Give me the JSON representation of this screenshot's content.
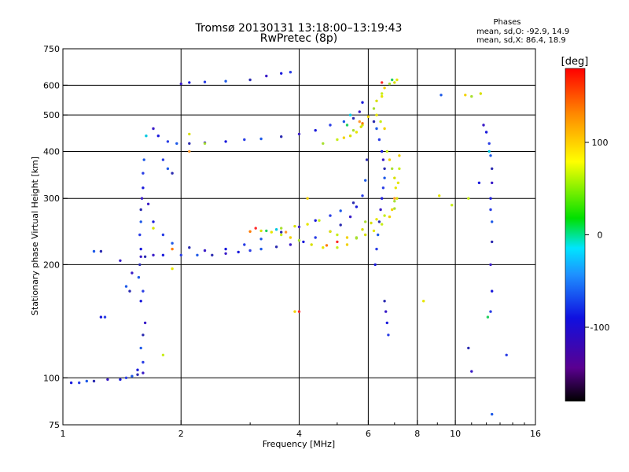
{
  "chart_data": {
    "type": "scatter",
    "title": "Tromsø 20130131 13:18:00–13:19:43",
    "subtitle": "RwPretec (8p)",
    "xlabel": "Frequency [MHz]",
    "ylabel": "Stationary phase Virtual Height [km]",
    "x_scale": "log",
    "y_scale": "log",
    "xlim": [
      1,
      16
    ],
    "ylim": [
      75,
      750
    ],
    "x_ticks": [
      1,
      2,
      4,
      6,
      8,
      10,
      16
    ],
    "x_tick_labels": [
      "1",
      "2",
      "4",
      "6",
      "8",
      "10",
      "16"
    ],
    "y_ticks": [
      75,
      100,
      200,
      300,
      400,
      500,
      600,
      750
    ],
    "y_tick_labels": [
      "75",
      "100",
      "200",
      "300",
      "400",
      "500",
      "600",
      "750"
    ],
    "grid": true,
    "stats": {
      "heading": "Phases",
      "line_o": "mean, sd,O: -92.9, 14.9",
      "line_x": "mean, sd,X:  86.4, 18.9"
    },
    "colorbar": {
      "label": "[deg]",
      "range": [
        -180,
        180
      ],
      "ticks": [
        -100,
        0,
        100
      ],
      "tick_labels": [
        "-100",
        "0",
        "100"
      ],
      "location": "right"
    },
    "series": [
      {
        "points": [
          [
            1.05,
            97
          ],
          [
            1.1,
            97
          ],
          [
            1.15,
            98
          ],
          [
            1.2,
            98
          ],
          [
            1.3,
            99
          ],
          [
            1.4,
            99
          ],
          [
            1.45,
            100
          ],
          [
            1.5,
            101
          ],
          [
            1.55,
            102
          ],
          [
            1.6,
            103
          ],
          [
            1.55,
            105
          ],
          [
            1.6,
            110
          ],
          [
            1.58,
            120
          ],
          [
            1.6,
            130
          ],
          [
            1.62,
            140
          ],
          [
            1.58,
            160
          ],
          [
            1.6,
            170
          ],
          [
            1.56,
            185
          ],
          [
            1.57,
            200
          ],
          [
            1.58,
            210
          ],
          [
            1.58,
            220
          ],
          [
            1.57,
            240
          ],
          [
            1.58,
            260
          ],
          [
            1.58,
            280
          ],
          [
            1.59,
            300
          ],
          [
            1.6,
            320
          ],
          [
            1.6,
            350
          ],
          [
            1.61,
            380
          ],
          [
            1.62,
            210
          ],
          [
            1.7,
            212
          ],
          [
            1.8,
            212
          ],
          [
            2.0,
            212
          ],
          [
            2.2,
            212
          ],
          [
            2.4,
            212
          ],
          [
            2.6,
            214
          ],
          [
            2.8,
            216
          ],
          [
            3.0,
            218
          ],
          [
            3.2,
            220
          ],
          [
            3.5,
            223
          ],
          [
            3.8,
            226
          ],
          [
            4.1,
            230
          ],
          [
            4.4,
            236
          ],
          [
            4.8,
            245
          ],
          [
            5.1,
            255
          ],
          [
            5.4,
            268
          ],
          [
            5.6,
            285
          ],
          [
            5.8,
            305
          ],
          [
            5.9,
            335
          ],
          [
            5.95,
            380
          ],
          [
            1.65,
            290
          ],
          [
            1.7,
            260
          ],
          [
            1.8,
            240
          ],
          [
            1.9,
            228
          ],
          [
            2.1,
            222
          ],
          [
            2.3,
            218
          ],
          [
            2.6,
            220
          ],
          [
            2.9,
            226
          ],
          [
            3.2,
            234
          ],
          [
            3.6,
            244
          ],
          [
            4.0,
            252
          ],
          [
            4.4,
            262
          ],
          [
            4.8,
            270
          ],
          [
            5.1,
            278
          ],
          [
            5.5,
            292
          ],
          [
            1.7,
            460
          ],
          [
            1.75,
            440
          ],
          [
            1.85,
            425
          ],
          [
            1.95,
            420
          ],
          [
            2.1,
            420
          ],
          [
            2.3,
            422
          ],
          [
            2.6,
            425
          ],
          [
            2.9,
            430
          ],
          [
            3.2,
            432
          ],
          [
            3.6,
            438
          ],
          [
            4.0,
            445
          ],
          [
            4.4,
            455
          ],
          [
            4.8,
            470
          ],
          [
            5.2,
            480
          ],
          [
            5.5,
            490
          ],
          [
            5.7,
            510
          ],
          [
            5.8,
            540
          ],
          [
            1.8,
            380
          ],
          [
            1.85,
            360
          ],
          [
            1.9,
            350
          ],
          [
            2.0,
            605
          ],
          [
            2.1,
            610
          ],
          [
            2.3,
            612
          ],
          [
            2.6,
            615
          ],
          [
            3.0,
            620
          ],
          [
            3.3,
            635
          ],
          [
            3.6,
            645
          ],
          [
            3.8,
            650
          ],
          [
            1.2,
            217
          ],
          [
            1.25,
            217
          ],
          [
            1.4,
            205
          ],
          [
            1.25,
            145
          ],
          [
            1.28,
            145
          ],
          [
            1.45,
            175
          ],
          [
            1.48,
            170
          ],
          [
            1.5,
            190
          ],
          [
            6.25,
            200
          ],
          [
            6.3,
            220
          ],
          [
            6.35,
            240
          ],
          [
            6.4,
            260
          ],
          [
            6.45,
            280
          ],
          [
            6.5,
            300
          ],
          [
            6.55,
            320
          ],
          [
            6.6,
            340
          ],
          [
            6.6,
            360
          ],
          [
            6.55,
            380
          ],
          [
            6.5,
            400
          ],
          [
            6.4,
            430
          ],
          [
            6.3,
            460
          ],
          [
            6.2,
            480
          ],
          [
            11.8,
            470
          ],
          [
            12.0,
            450
          ],
          [
            12.2,
            420
          ],
          [
            12.3,
            390
          ],
          [
            12.4,
            360
          ],
          [
            12.4,
            330
          ],
          [
            12.3,
            300
          ],
          [
            12.3,
            280
          ],
          [
            12.4,
            260
          ],
          [
            12.4,
            230
          ],
          [
            12.3,
            200
          ],
          [
            12.4,
            170
          ],
          [
            12.3,
            150
          ],
          [
            12.4,
            80
          ],
          [
            10.8,
            120
          ],
          [
            11.0,
            104
          ],
          [
            11.5,
            330
          ],
          [
            13.5,
            115
          ],
          [
            9.2,
            565
          ],
          [
            6.6,
            160
          ],
          [
            6.65,
            150
          ],
          [
            6.7,
            140
          ],
          [
            6.75,
            130
          ]
        ]
      },
      {
        "points": [
          [
            3.2,
            246
          ],
          [
            3.4,
            244
          ],
          [
            3.6,
            240
          ],
          [
            3.8,
            236
          ],
          [
            4.0,
            232
          ],
          [
            4.3,
            226
          ],
          [
            4.6,
            222
          ],
          [
            5.0,
            222
          ],
          [
            5.3,
            226
          ],
          [
            5.6,
            235
          ],
          [
            5.8,
            248
          ],
          [
            4.8,
            245
          ],
          [
            5.0,
            240
          ],
          [
            5.3,
            236
          ],
          [
            5.6,
            236
          ],
          [
            5.9,
            240
          ],
          [
            6.2,
            246
          ],
          [
            6.5,
            256
          ],
          [
            6.8,
            268
          ],
          [
            7.0,
            282
          ],
          [
            7.1,
            300
          ],
          [
            7.15,
            330
          ],
          [
            7.2,
            360
          ],
          [
            7.2,
            390
          ],
          [
            5.9,
            260
          ],
          [
            6.1,
            258
          ],
          [
            6.3,
            264
          ],
          [
            6.6,
            270
          ],
          [
            6.9,
            280
          ],
          [
            7.0,
            295
          ],
          [
            5.4,
            440
          ],
          [
            5.6,
            450
          ],
          [
            5.8,
            470
          ],
          [
            6.0,
            495
          ],
          [
            6.2,
            520
          ],
          [
            6.3,
            545
          ],
          [
            6.5,
            560
          ],
          [
            6.5,
            570
          ],
          [
            6.6,
            590
          ],
          [
            6.8,
            605
          ],
          [
            7.0,
            610
          ],
          [
            7.1,
            620
          ],
          [
            6.7,
            400
          ],
          [
            6.8,
            380
          ],
          [
            6.9,
            360
          ],
          [
            7.0,
            340
          ],
          [
            7.05,
            320
          ],
          [
            5.0,
            430
          ],
          [
            5.2,
            435
          ],
          [
            5.5,
            455
          ],
          [
            5.75,
            465
          ],
          [
            6.3,
            500
          ],
          [
            6.45,
            480
          ],
          [
            6.6,
            460
          ],
          [
            3.6,
            250
          ],
          [
            3.9,
            253
          ],
          [
            4.2,
            256
          ],
          [
            4.5,
            262
          ],
          [
            4.2,
            300
          ],
          [
            2.3,
            420
          ],
          [
            2.1,
            445
          ],
          [
            1.9,
            195
          ],
          [
            1.8,
            115
          ],
          [
            3.9,
            150
          ],
          [
            4.6,
            420
          ],
          [
            1.7,
            250
          ],
          [
            9.1,
            305
          ],
          [
            9.8,
            288
          ],
          [
            10.6,
            565
          ],
          [
            11.0,
            560
          ],
          [
            11.6,
            570
          ],
          [
            8.3,
            160
          ],
          [
            10.8,
            300
          ]
        ]
      },
      {
        "points": [
          [
            3.0,
            245
          ],
          [
            3.1,
            250
          ],
          [
            3.3,
            246
          ],
          [
            3.5,
            248
          ],
          [
            3.7,
            244
          ],
          [
            4.7,
            225
          ],
          [
            5.0,
            230
          ],
          [
            5.3,
            470
          ],
          [
            5.4,
            500
          ],
          [
            5.7,
            480
          ],
          [
            5.8,
            475
          ],
          [
            6.5,
            610
          ],
          [
            6.9,
            620
          ],
          [
            1.63,
            440
          ],
          [
            2.1,
            400
          ],
          [
            1.9,
            220
          ],
          [
            4.0,
            150
          ],
          [
            12.1,
            145
          ],
          [
            12.2,
            400
          ],
          [
            7.0,
            300
          ]
        ]
      }
    ]
  }
}
